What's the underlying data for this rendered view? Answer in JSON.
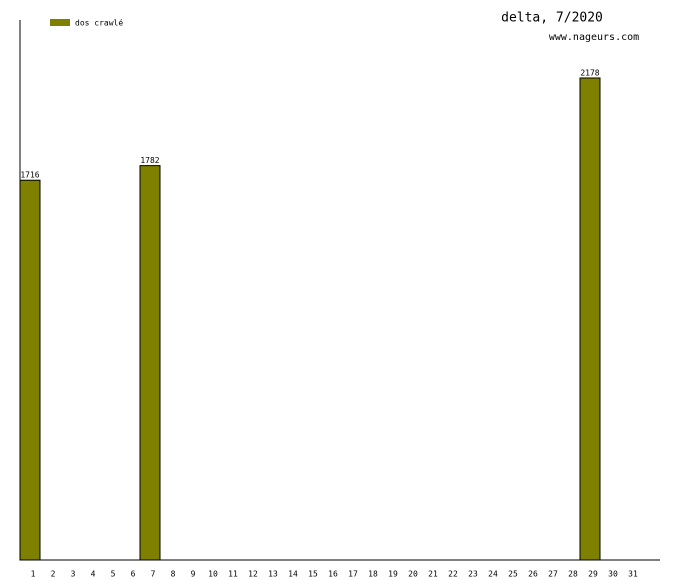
{
  "chart_data": {
    "type": "bar",
    "title": "delta, 7/2020",
    "subtitle": "www.nageurs.com",
    "categories": [
      "1",
      "2",
      "3",
      "4",
      "5",
      "6",
      "7",
      "8",
      "9",
      "10",
      "11",
      "12",
      "13",
      "14",
      "15",
      "16",
      "17",
      "18",
      "19",
      "20",
      "21",
      "22",
      "23",
      "24",
      "25",
      "26",
      "27",
      "28",
      "29",
      "30",
      "31"
    ],
    "series": [
      {
        "name": "dos crawlé",
        "color": "#808000",
        "values": [
          1716,
          null,
          null,
          null,
          null,
          null,
          1782,
          null,
          null,
          null,
          null,
          null,
          null,
          null,
          null,
          null,
          null,
          null,
          null,
          null,
          null,
          null,
          null,
          null,
          null,
          null,
          null,
          null,
          2178,
          null,
          null
        ]
      }
    ],
    "ylim": [
      0,
      2440
    ],
    "value_labels_shown": true
  }
}
